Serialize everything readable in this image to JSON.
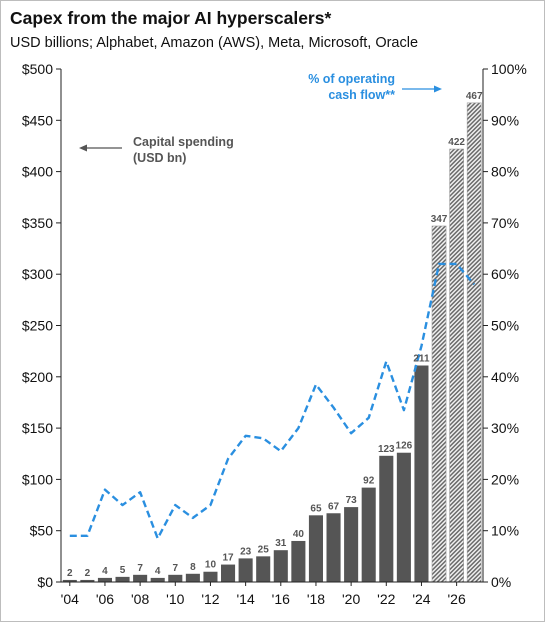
{
  "title": "Capex from the major AI hyperscalers*",
  "subtitle": "USD billions; Alphabet, Amazon (AWS), Meta, Microsoft, Oracle",
  "annotations": {
    "capital_spending": [
      "Capital spending",
      "(USD bn)"
    ],
    "cash_flow": [
      "% of operating",
      "cash flow**"
    ]
  },
  "colors": {
    "bar_actual": "#555555",
    "bar_estimate": "#a0a0a0",
    "line": "#2a8fe0",
    "axis": "#222222"
  },
  "chart_data": {
    "type": "bar",
    "title": "Capex from the major AI hyperscalers*",
    "categories": [
      "2004",
      "2005",
      "2006",
      "2007",
      "2008",
      "2009",
      "2010",
      "2011",
      "2012",
      "2013",
      "2014",
      "2015",
      "2016",
      "2017",
      "2018",
      "2019",
      "2020",
      "2021",
      "2022",
      "2023",
      "2024",
      "2025",
      "2026",
      "2027"
    ],
    "x_tick_labels": [
      "'04",
      "'06",
      "'08",
      "'10",
      "'12",
      "'14",
      "'16",
      "'18",
      "'20",
      "'22",
      "'24",
      "'26"
    ],
    "series": [
      {
        "name": "Capital spending (USD bn)",
        "axis": "left",
        "values": [
          2,
          2,
          4,
          5,
          7,
          4,
          7,
          8,
          10,
          17,
          23,
          25,
          31,
          40,
          65,
          67,
          73,
          92,
          123,
          126,
          211,
          347,
          422,
          467
        ],
        "estimate_from": "2025"
      },
      {
        "name": "% of operating cash flow**",
        "axis": "right",
        "type": "line",
        "style": "dashed",
        "values": [
          9,
          9,
          18,
          15,
          17.5,
          8.5,
          15,
          12.5,
          15,
          24,
          28.5,
          28,
          25.5,
          30,
          38.5,
          34,
          29,
          32,
          43,
          33.5,
          46,
          62,
          62,
          58
        ]
      }
    ],
    "left_axis": {
      "ylim": [
        0,
        500
      ],
      "ticks": [
        "$0",
        "$50",
        "$100",
        "$150",
        "$200",
        "$250",
        "$300",
        "$350",
        "$400",
        "$450",
        "$500"
      ]
    },
    "right_axis": {
      "ylim": [
        0,
        100
      ],
      "ticks": [
        "0%",
        "10%",
        "20%",
        "30%",
        "40%",
        "50%",
        "60%",
        "70%",
        "80%",
        "90%",
        "100%"
      ]
    },
    "grid": false,
    "legend": "none"
  }
}
